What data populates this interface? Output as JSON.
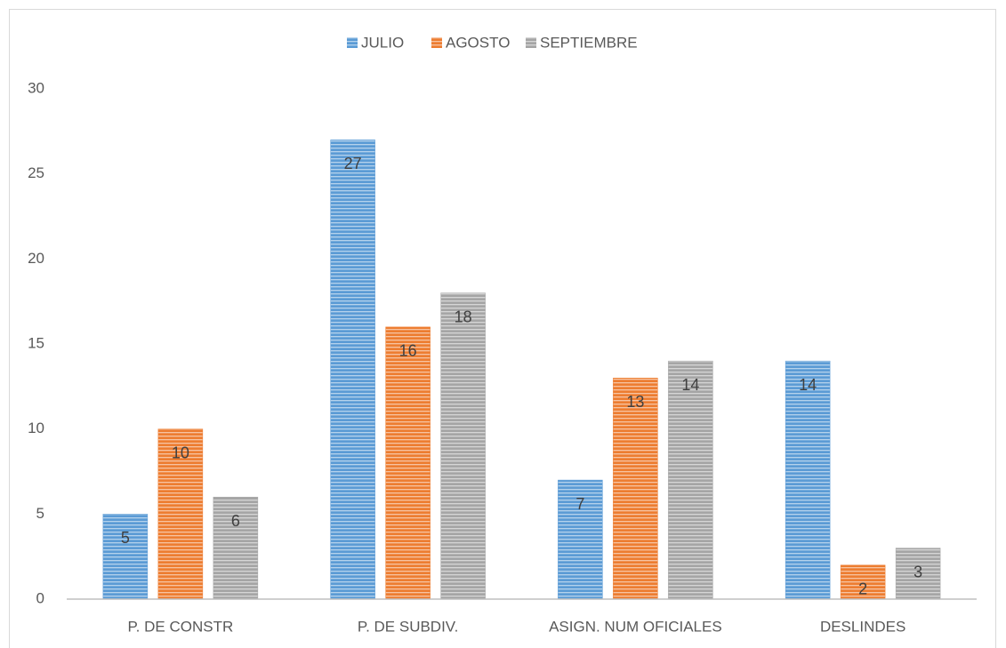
{
  "chart_data": {
    "type": "bar",
    "categories": [
      "P. DE CONSTR",
      "P. DE SUBDIV.",
      "ASIGN. NUM OFICIALES",
      "DESLINDES"
    ],
    "series": [
      {
        "name": "JULIO",
        "color": "#5b9bd5",
        "values": [
          5,
          27,
          7,
          14
        ]
      },
      {
        "name": "AGOSTO",
        "color": "#ed7d31",
        "values": [
          10,
          16,
          13,
          2
        ]
      },
      {
        "name": "SEPTIEMBRE",
        "color": "#a5a5a5",
        "values": [
          6,
          18,
          14,
          3
        ]
      }
    ],
    "ylim": [
      0,
      30
    ],
    "yticks": [
      0,
      5,
      10,
      15,
      20,
      25,
      30
    ],
    "grid": false,
    "legend": "top"
  }
}
